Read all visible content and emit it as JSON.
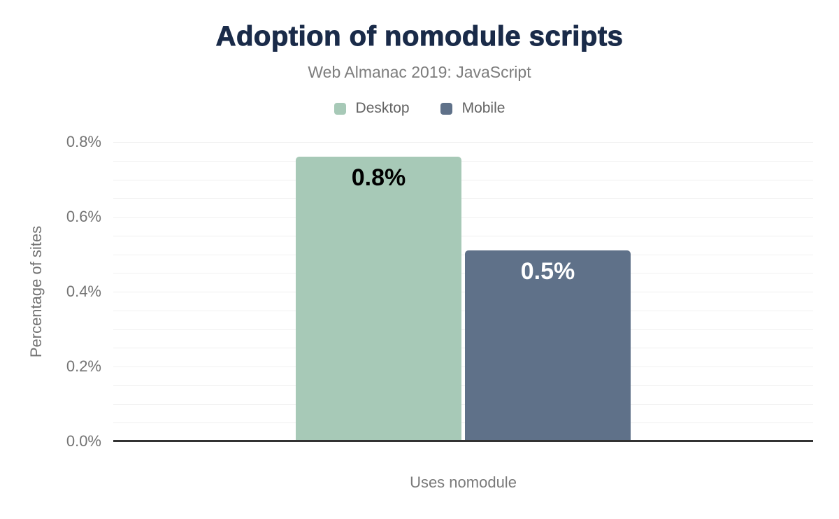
{
  "title": "Adoption of nomodule scripts",
  "subtitle": "Web Almanac 2019: JavaScript",
  "legend": [
    {
      "label": "Desktop",
      "color": "#a7c9b7"
    },
    {
      "label": "Mobile",
      "color": "#5f7189"
    }
  ],
  "colors": {
    "title_text": "#1a2b49",
    "muted_text": "#7a7a7a",
    "tick_text": "#737373",
    "gridline": "#f0f0f0",
    "axis_line": "#333333",
    "desktop_bar": "#a7c9b7",
    "mobile_bar": "#5f7189"
  },
  "chart_data": {
    "type": "bar",
    "title": "Adoption of nomodule scripts",
    "subtitle": "Web Almanac 2019: JavaScript",
    "categories": [
      "Uses nomodule"
    ],
    "series": [
      {
        "name": "Desktop",
        "values": [
          0.76
        ],
        "display_labels": [
          "0.8%"
        ],
        "color": "#a7c9b7",
        "label_color": "#000000"
      },
      {
        "name": "Mobile",
        "values": [
          0.51
        ],
        "display_labels": [
          "0.5%"
        ],
        "color": "#5f7189",
        "label_color": "#ffffff"
      }
    ],
    "xlabel": "Uses nomodule",
    "ylabel": "Percentage of sites",
    "ylim": [
      0,
      0.8
    ],
    "ytick_step": 0.2,
    "grid_step": 0.05,
    "ytick_labels": [
      "0.0%",
      "0.2%",
      "0.4%",
      "0.6%",
      "0.8%"
    ],
    "grid": true,
    "legend_position": "top"
  }
}
